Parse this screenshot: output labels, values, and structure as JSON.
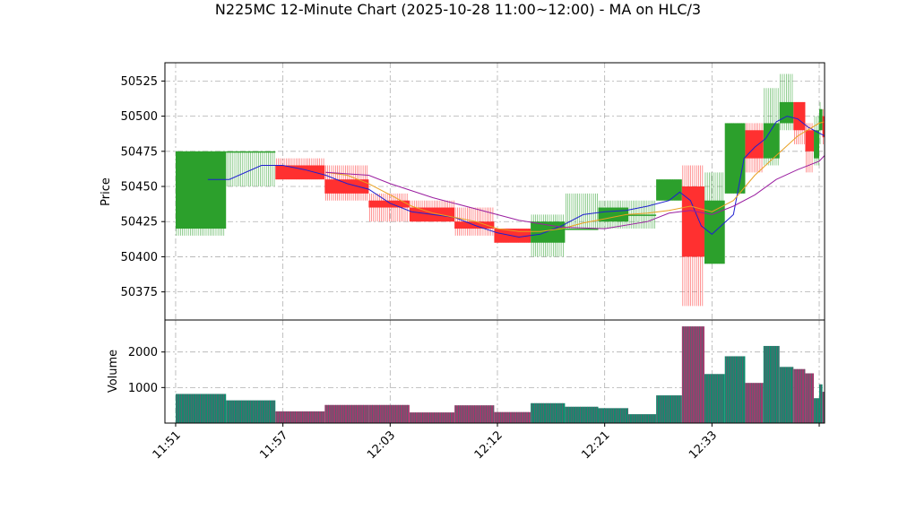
{
  "chart_data": {
    "type": "candlestick",
    "title": "N225MC 12-Minute Chart (2025-10-28 11:00~12:00) - MA on HLC/3",
    "price_panel": {
      "ylabel": "Price",
      "ylim": [
        50355,
        50538
      ],
      "yticks": [
        50375,
        50400,
        50425,
        50450,
        50475,
        50500,
        50525
      ],
      "grid": true
    },
    "volume_panel": {
      "ylabel": "Volume",
      "ylim": [
        0,
        2900
      ],
      "yticks": [
        1000,
        2000
      ],
      "grid": true
    },
    "xlim": [
      -1,
      60.5
    ],
    "xticks": [
      {
        "x": 0,
        "label": "11:51"
      },
      {
        "x": 10,
        "label": "11:57"
      },
      {
        "x": 20,
        "label": "12:03"
      },
      {
        "x": 30,
        "label": "12:12"
      },
      {
        "x": 40,
        "label": "12:21"
      },
      {
        "x": 50,
        "label": "12:33"
      },
      {
        "x": 60,
        "label": ""
      }
    ],
    "colors": {
      "up": "#2ca02c",
      "down": "#ff3030",
      "ma_fast": "#1f1fd0",
      "ma_mid": "#e8a020",
      "ma_slow": "#9a1ea0",
      "vol_up": "#138a6e",
      "vol_down": "#a23a6e"
    },
    "candles": [
      {
        "x0": 0,
        "x1": 4.7,
        "open": 50420,
        "high": 50475,
        "low": 50415,
        "close": 50475,
        "volume": 820
      },
      {
        "x0": 4.7,
        "x1": 9.3,
        "open": 50475,
        "high": 50475,
        "low": 50450,
        "close": 50475,
        "volume": 640
      },
      {
        "x0": 9.3,
        "x1": 13.9,
        "open": 50465,
        "high": 50470,
        "low": 50455,
        "close": 50455,
        "volume": 330
      },
      {
        "x0": 13.9,
        "x1": 18,
        "open": 50455,
        "high": 50465,
        "low": 50440,
        "close": 50445,
        "volume": 510
      },
      {
        "x0": 18,
        "x1": 21.8,
        "open": 50440,
        "high": 50445,
        "low": 50425,
        "close": 50435,
        "volume": 510
      },
      {
        "x0": 21.8,
        "x1": 26,
        "open": 50435,
        "high": 50440,
        "low": 50425,
        "close": 50425,
        "volume": 300
      },
      {
        "x0": 26,
        "x1": 29.7,
        "open": 50425,
        "high": 50435,
        "low": 50415,
        "close": 50420,
        "volume": 500
      },
      {
        "x0": 29.7,
        "x1": 33.1,
        "open": 50420,
        "high": 50420,
        "low": 50410,
        "close": 50410,
        "volume": 310
      },
      {
        "x0": 33.1,
        "x1": 36.3,
        "open": 50410,
        "high": 50430,
        "low": 50400,
        "close": 50425,
        "volume": 560
      },
      {
        "x0": 36.3,
        "x1": 39.4,
        "open": 50420,
        "high": 50445,
        "low": 50420,
        "close": 50420,
        "volume": 460
      },
      {
        "x0": 39.4,
        "x1": 42.2,
        "open": 50425,
        "high": 50440,
        "low": 50420,
        "close": 50435,
        "volume": 420
      },
      {
        "x0": 42.2,
        "x1": 44.8,
        "open": 50430,
        "high": 50440,
        "low": 50420,
        "close": 50430,
        "volume": 250
      },
      {
        "x0": 44.8,
        "x1": 47.2,
        "open": 50440,
        "high": 50455,
        "low": 50440,
        "close": 50455,
        "volume": 780
      },
      {
        "x0": 47.2,
        "x1": 49.3,
        "open": 50450,
        "high": 50465,
        "low": 50365,
        "close": 50400,
        "volume": 2720
      },
      {
        "x0": 49.3,
        "x1": 51.2,
        "open": 50395,
        "high": 50460,
        "low": 50395,
        "close": 50440,
        "volume": 1380
      },
      {
        "x0": 51.2,
        "x1": 53.1,
        "open": 50445,
        "high": 50495,
        "low": 50445,
        "close": 50495,
        "volume": 1880
      },
      {
        "x0": 53.1,
        "x1": 54.8,
        "open": 50490,
        "high": 50495,
        "low": 50460,
        "close": 50470,
        "volume": 1130
      },
      {
        "x0": 54.8,
        "x1": 56.3,
        "open": 50470,
        "high": 50520,
        "low": 50465,
        "close": 50495,
        "volume": 2170
      },
      {
        "x0": 56.3,
        "x1": 57.6,
        "open": 50495,
        "high": 50530,
        "low": 50490,
        "close": 50510,
        "volume": 1580
      },
      {
        "x0": 57.6,
        "x1": 58.7,
        "open": 50510,
        "high": 50510,
        "low": 50480,
        "close": 50490,
        "volume": 1520
      },
      {
        "x0": 58.7,
        "x1": 59.5,
        "open": 50490,
        "high": 50495,
        "low": 50460,
        "close": 50475,
        "volume": 1400
      },
      {
        "x0": 59.5,
        "x1": 60,
        "open": 50470,
        "high": 50500,
        "low": 50465,
        "close": 50490,
        "volume": 700
      },
      {
        "x0": 60,
        "x1": 60.3,
        "open": 50490,
        "high": 50510,
        "low": 50480,
        "close": 50505,
        "volume": 1090
      },
      {
        "x0": 60.3,
        "x1": 60.5,
        "open": 50500,
        "high": 50505,
        "low": 50480,
        "close": 50485,
        "volume": 880
      }
    ],
    "series": [
      {
        "key": "ma_fast",
        "x": [
          3,
          5,
          8,
          10,
          12,
          14,
          16,
          18,
          20,
          22,
          24,
          26,
          28,
          30,
          32,
          34,
          36,
          38,
          40,
          42,
          44,
          46,
          47,
          48,
          49,
          50,
          52,
          53,
          54,
          55,
          56,
          57,
          58,
          59,
          60,
          60.5
        ],
        "y": [
          50455,
          50455,
          50465,
          50465,
          50462,
          50458,
          50452,
          50448,
          50438,
          50432,
          50430,
          50428,
          50422,
          50417,
          50414,
          50416,
          50422,
          50430,
          50432,
          50433,
          50436,
          50440,
          50446,
          50440,
          50422,
          50416,
          50430,
          50470,
          50478,
          50484,
          50496,
          50500,
          50498,
          50492,
          50488,
          50486
        ]
      },
      {
        "key": "ma_mid",
        "x": [
          14,
          16,
          18,
          20,
          22,
          24,
          26,
          28,
          30,
          32,
          34,
          36,
          38,
          40,
          42,
          44,
          46,
          48,
          50,
          52,
          54,
          56,
          58,
          60,
          60.5
        ],
        "y": [
          50460,
          50458,
          50452,
          50444,
          50436,
          50431,
          50428,
          50425,
          50420,
          50418,
          50418,
          50420,
          50424,
          50427,
          50430,
          50431,
          50433,
          50436,
          50432,
          50440,
          50458,
          50472,
          50486,
          50495,
          50496
        ]
      },
      {
        "key": "ma_slow",
        "x": [
          14,
          18,
          20,
          24,
          28,
          32,
          36,
          40,
          44,
          46,
          48,
          50,
          52,
          54,
          56,
          58,
          60,
          60.5
        ],
        "y": [
          50460,
          50458,
          50452,
          50442,
          50434,
          50426,
          50421,
          50420,
          50425,
          50431,
          50433,
          50430,
          50436,
          50444,
          50455,
          50462,
          50468,
          50472
        ]
      }
    ]
  }
}
